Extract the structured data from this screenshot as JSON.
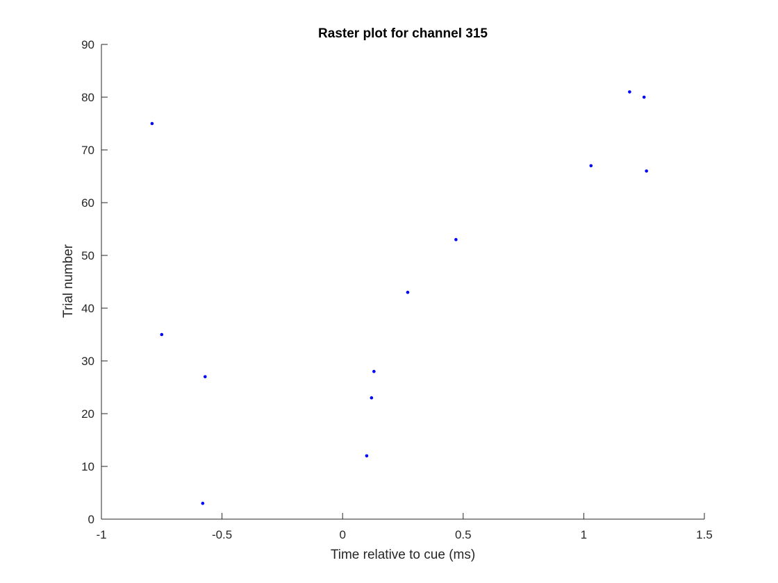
{
  "chart_data": {
    "type": "scatter",
    "title": "Raster plot for channel 315",
    "xlabel": "Time relative to cue (ms)",
    "ylabel": "Trial number",
    "xlim": [
      -1,
      1.5
    ],
    "ylim": [
      0,
      90
    ],
    "xticks": [
      -1,
      -0.5,
      0,
      0.5,
      1,
      1.5
    ],
    "xtick_labels": [
      "-1",
      "-0.5",
      "0",
      "0.5",
      "1",
      "1.5"
    ],
    "yticks": [
      0,
      10,
      20,
      30,
      40,
      50,
      60,
      70,
      80,
      90
    ],
    "ytick_labels": [
      "0",
      "10",
      "20",
      "30",
      "40",
      "50",
      "60",
      "70",
      "80",
      "90"
    ],
    "grid": false,
    "legend": "none",
    "marker_color": "#0000ff",
    "points": [
      {
        "x": -0.79,
        "y": 75
      },
      {
        "x": -0.75,
        "y": 35
      },
      {
        "x": -0.58,
        "y": 3
      },
      {
        "x": -0.57,
        "y": 27
      },
      {
        "x": 0.1,
        "y": 12
      },
      {
        "x": 0.12,
        "y": 23
      },
      {
        "x": 0.13,
        "y": 28
      },
      {
        "x": 0.27,
        "y": 43
      },
      {
        "x": 0.47,
        "y": 53
      },
      {
        "x": 1.03,
        "y": 67
      },
      {
        "x": 1.19,
        "y": 81
      },
      {
        "x": 1.25,
        "y": 80
      },
      {
        "x": 1.26,
        "y": 66
      }
    ]
  }
}
